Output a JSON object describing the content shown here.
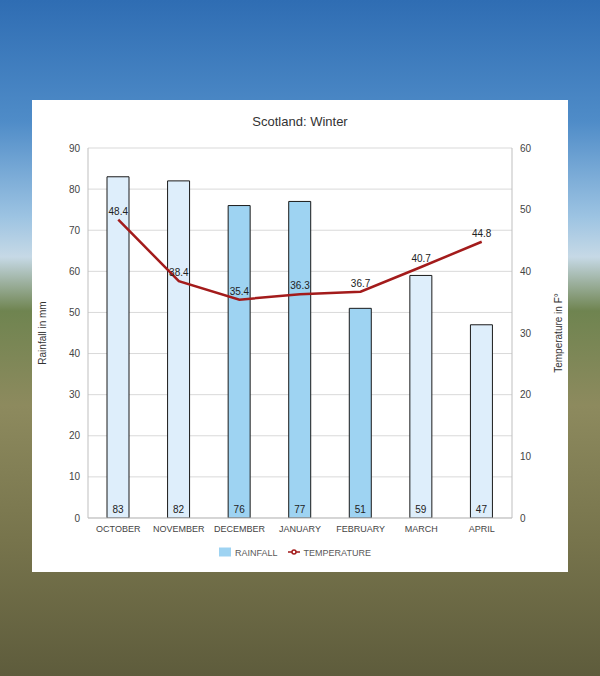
{
  "chart_data": {
    "type": "bar",
    "title": "Scotland: Winter",
    "ylabel": "Rainfall in mm",
    "y2label": "Temperature in F°",
    "categories": [
      "OCTOBER",
      "NOVEMBER",
      "DECEMBER",
      "JANUARY",
      "FEBRUARY",
      "MARCH",
      "APRIL"
    ],
    "series": [
      {
        "name": "RAINFALL",
        "type": "bar",
        "color": "#9ed3f2",
        "colors": [
          "#deeefb",
          "#deeefb",
          "#9ed3f2",
          "#9ed3f2",
          "#9ed3f2",
          "#deeefb",
          "#deeefb"
        ],
        "values": [
          83,
          82,
          76,
          77,
          51,
          59,
          47
        ]
      },
      {
        "name": "TEMPERATURE",
        "type": "line",
        "color": "#a31b1b",
        "axis": "y2",
        "values": [
          48.4,
          38.4,
          35.4,
          36.3,
          36.7,
          40.7,
          44.8
        ]
      }
    ],
    "ylim": [
      0,
      90
    ],
    "yticks": [
      0,
      10,
      20,
      30,
      40,
      50,
      60,
      70,
      80,
      90
    ],
    "y2lim": [
      0,
      60
    ],
    "y2ticks": [
      0,
      10,
      20,
      30,
      40,
      50,
      60
    ],
    "grid": true,
    "legend": "bottom",
    "data_labels": true
  }
}
